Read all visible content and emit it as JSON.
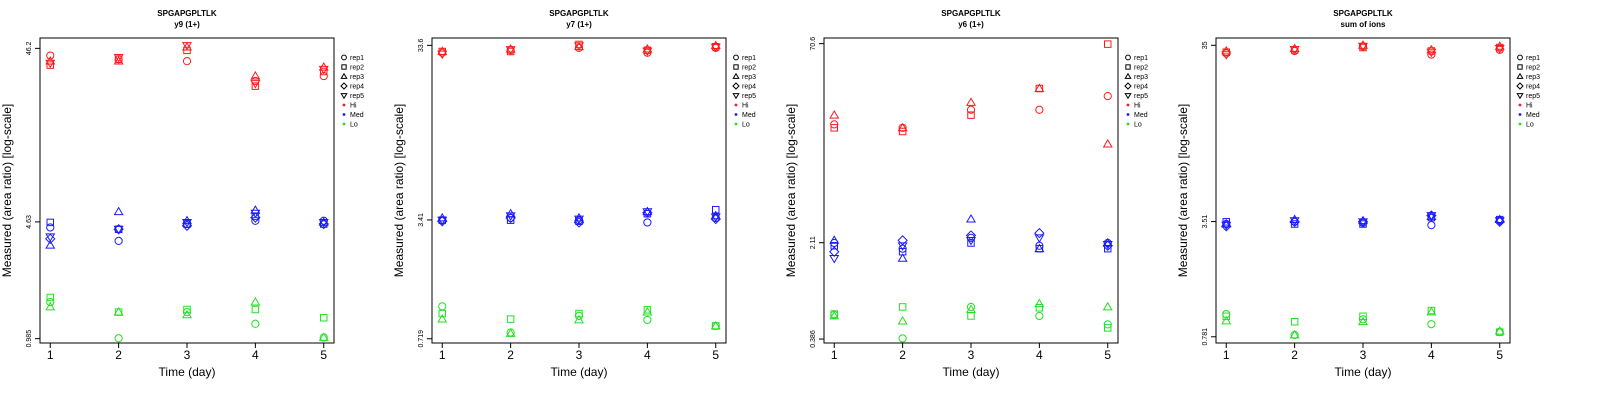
{
  "chart_data": [
    {
      "type": "scatter",
      "title": "SPGAPGPLTLK",
      "subtitle": "y9 (1+)",
      "xlabel": "Time (day)",
      "ylabel": "Measured (area ratio) [log-scale]",
      "log_y": true,
      "ylim": [
        0.93,
        53
      ],
      "yticks": [
        0.985,
        4.63,
        46.2
      ],
      "ytick_labels": [
        "0.985",
        "4.63",
        "46.2"
      ],
      "x": [
        1,
        2,
        3,
        4,
        5
      ],
      "xlim": [
        0.85,
        5.15
      ],
      "legend": [
        "rep1",
        "rep2",
        "rep3",
        "rep4",
        "rep5",
        "Hi",
        "Med",
        "Lo"
      ],
      "legend_position": "right",
      "series": [
        {
          "level": "Hi",
          "rep": "rep1",
          "values": [
            42,
            40,
            39,
            30,
            32
          ]
        },
        {
          "level": "Hi",
          "rep": "rep2",
          "values": [
            37,
            40,
            45,
            28,
            34
          ]
        },
        {
          "level": "Hi",
          "rep": "rep3",
          "values": [
            39,
            39,
            47,
            32,
            36
          ]
        },
        {
          "level": "Hi",
          "rep": "rep5",
          "values": [
            38,
            41,
            48,
            29,
            35
          ]
        },
        {
          "level": "Med",
          "rep": "rep1",
          "values": [
            4.3,
            3.6,
            4.5,
            4.7,
            4.7
          ]
        },
        {
          "level": "Med",
          "rep": "rep2",
          "values": [
            4.6,
            4.2,
            4.5,
            5.0,
            4.5
          ]
        },
        {
          "level": "Med",
          "rep": "rep3",
          "values": [
            3.4,
            5.3,
            4.7,
            5.4,
            4.6
          ]
        },
        {
          "level": "Med",
          "rep": "rep4",
          "values": [
            3.7,
            4.2,
            4.4,
            4.9,
            4.5
          ]
        },
        {
          "level": "Med",
          "rep": "rep5",
          "values": [
            3.8,
            4.2,
            4.6,
            5.2,
            4.6
          ]
        },
        {
          "level": "Lo",
          "rep": "rep1",
          "values": [
            1.6,
            0.99,
            1.4,
            1.2,
            1.0
          ]
        },
        {
          "level": "Lo",
          "rep": "rep2",
          "values": [
            1.7,
            1.4,
            1.45,
            1.45,
            1.3
          ]
        },
        {
          "level": "Lo",
          "rep": "rep3",
          "values": [
            1.5,
            1.4,
            1.35,
            1.6,
            1.0
          ]
        }
      ]
    },
    {
      "type": "scatter",
      "title": "SPGAPGPLTLK",
      "subtitle": "y7 (1+)",
      "xlabel": "Time (day)",
      "ylabel": "Measured (area ratio) [log-scale]",
      "log_y": true,
      "ylim": [
        0.68,
        37
      ],
      "yticks": [
        0.719,
        3.41,
        33.6
      ],
      "ytick_labels": [
        "0.719",
        "3.41",
        "33.6"
      ],
      "x": [
        1,
        2,
        3,
        4,
        5
      ],
      "xlim": [
        0.85,
        5.15
      ],
      "legend": [
        "rep1",
        "rep2",
        "rep3",
        "rep4",
        "rep5",
        "Hi",
        "Med",
        "Lo"
      ],
      "legend_position": "right",
      "series": [
        {
          "level": "Hi",
          "rep": "rep1",
          "values": [
            30.5,
            31.5,
            32.5,
            30.5,
            32.5
          ]
        },
        {
          "level": "Hi",
          "rep": "rep2",
          "values": [
            31.0,
            31.0,
            34.0,
            31.5,
            33.0
          ]
        },
        {
          "level": "Hi",
          "rep": "rep3",
          "values": [
            31.0,
            32.0,
            33.0,
            32.0,
            33.5
          ]
        },
        {
          "level": "Hi",
          "rep": "rep5",
          "values": [
            30.0,
            31.8,
            33.4,
            31.2,
            32.8
          ]
        },
        {
          "level": "Med",
          "rep": "rep1",
          "values": [
            3.4,
            3.5,
            3.4,
            3.3,
            3.5
          ]
        },
        {
          "level": "Med",
          "rep": "rep2",
          "values": [
            3.4,
            3.4,
            3.35,
            3.7,
            3.9
          ]
        },
        {
          "level": "Med",
          "rep": "rep3",
          "values": [
            3.5,
            3.7,
            3.5,
            3.8,
            3.6
          ]
        },
        {
          "level": "Med",
          "rep": "rep4",
          "values": [
            3.35,
            3.5,
            3.3,
            3.75,
            3.45
          ]
        },
        {
          "level": "Med",
          "rep": "rep5",
          "values": [
            3.4,
            3.6,
            3.45,
            3.8,
            3.55
          ]
        },
        {
          "level": "Lo",
          "rep": "rep1",
          "values": [
            1.1,
            0.78,
            0.97,
            0.92,
            0.85
          ]
        },
        {
          "level": "Lo",
          "rep": "rep2",
          "values": [
            1.0,
            0.93,
            1.0,
            1.05,
            0.85
          ]
        },
        {
          "level": "Lo",
          "rep": "rep3",
          "values": [
            0.93,
            0.77,
            0.92,
            1.02,
            0.85
          ]
        }
      ]
    },
    {
      "type": "scatter",
      "title": "SPGAPGPLTLK",
      "subtitle": "y6 (1+)",
      "xlabel": "Time (day)",
      "ylabel": "Measured (area ratio) [log-scale]",
      "log_y": true,
      "ylim": [
        0.36,
        78
      ],
      "yticks": [
        0.386,
        2.11,
        70.6
      ],
      "ytick_labels": [
        "0.386",
        "2.11",
        "70.6"
      ],
      "x": [
        1,
        2,
        3,
        4,
        5
      ],
      "xlim": [
        0.85,
        5.15
      ],
      "legend": [
        "rep1",
        "rep2",
        "rep3",
        "rep4",
        "rep5",
        "Hi",
        "Med",
        "Lo"
      ],
      "legend_position": "right",
      "series": [
        {
          "level": "Hi",
          "rep": "rep1",
          "values": [
            17,
            16,
            22,
            22,
            28
          ]
        },
        {
          "level": "Hi",
          "rep": "rep2",
          "values": [
            16,
            15,
            20,
            32,
            70
          ]
        },
        {
          "level": "Hi",
          "rep": "rep3",
          "values": [
            20,
            16,
            25,
            32,
            12
          ]
        },
        {
          "level": "Med",
          "rep": "rep1",
          "values": [
            2.1,
            1.9,
            2.3,
            2.0,
            2.1
          ]
        },
        {
          "level": "Med",
          "rep": "rep2",
          "values": [
            2.0,
            1.8,
            2.1,
            1.9,
            1.9
          ]
        },
        {
          "level": "Med",
          "rep": "rep3",
          "values": [
            2.2,
            1.6,
            3.2,
            1.9,
            2.1
          ]
        },
        {
          "level": "Med",
          "rep": "rep4",
          "values": [
            1.8,
            2.2,
            2.4,
            2.5,
            2.0
          ]
        },
        {
          "level": "Med",
          "rep": "rep5",
          "values": [
            1.6,
            2.0,
            2.2,
            2.3,
            2.05
          ]
        },
        {
          "level": "Lo",
          "rep": "rep1",
          "values": [
            0.59,
            0.39,
            0.68,
            0.58,
            0.5
          ]
        },
        {
          "level": "Lo",
          "rep": "rep2",
          "values": [
            0.6,
            0.68,
            0.58,
            0.67,
            0.47
          ]
        },
        {
          "level": "Lo",
          "rep": "rep3",
          "values": [
            0.58,
            0.53,
            0.65,
            0.72,
            0.68
          ]
        }
      ]
    },
    {
      "type": "scatter",
      "title": "SPGAPGPLTLK",
      "subtitle": "sum of ions",
      "xlabel": "Time (day)",
      "ylabel": "Measured (area ratio) [log-scale]",
      "log_y": true,
      "ylim": [
        0.72,
        38.5
      ],
      "yticks": [
        0.781,
        3.51,
        35
      ],
      "ytick_labels": [
        "0.781",
        "3.51",
        "35"
      ],
      "x": [
        1,
        2,
        3,
        4,
        5
      ],
      "xlim": [
        0.85,
        5.15
      ],
      "legend": [
        "rep1",
        "rep2",
        "rep3",
        "rep4",
        "rep5",
        "Hi",
        "Med",
        "Lo"
      ],
      "legend_position": "right",
      "series": [
        {
          "level": "Hi",
          "rep": "rep1",
          "values": [
            31.5,
            32.5,
            34.5,
            31.0,
            33.0
          ]
        },
        {
          "level": "Hi",
          "rep": "rep2",
          "values": [
            32.0,
            33.0,
            34.0,
            32.5,
            34.0
          ]
        },
        {
          "level": "Hi",
          "rep": "rep3",
          "values": [
            32.5,
            33.5,
            35.0,
            33.0,
            34.5
          ]
        },
        {
          "level": "Hi",
          "rep": "rep5",
          "values": [
            31.0,
            33.2,
            34.6,
            32.0,
            33.6
          ]
        },
        {
          "level": "Med",
          "rep": "rep1",
          "values": [
            3.4,
            3.5,
            3.45,
            3.35,
            3.55
          ]
        },
        {
          "level": "Med",
          "rep": "rep2",
          "values": [
            3.5,
            3.4,
            3.4,
            3.7,
            3.6
          ]
        },
        {
          "level": "Med",
          "rep": "rep3",
          "values": [
            3.4,
            3.6,
            3.55,
            3.75,
            3.6
          ]
        },
        {
          "level": "Med",
          "rep": "rep4",
          "values": [
            3.3,
            3.5,
            3.5,
            3.8,
            3.5
          ]
        },
        {
          "level": "Med",
          "rep": "rep5",
          "values": [
            3.35,
            3.55,
            3.5,
            3.8,
            3.55
          ]
        },
        {
          "level": "Lo",
          "rep": "rep1",
          "values": [
            1.05,
            0.8,
            0.98,
            0.92,
            0.83
          ]
        },
        {
          "level": "Lo",
          "rep": "rep2",
          "values": [
            1.02,
            0.95,
            1.02,
            1.1,
            0.83
          ]
        },
        {
          "level": "Lo",
          "rep": "rep3",
          "values": [
            0.96,
            0.8,
            0.95,
            1.08,
            0.84
          ]
        }
      ]
    }
  ],
  "colors": {
    "Hi": "#ff1a1a",
    "Med": "#1a1aff",
    "Lo": "#22e022"
  },
  "markers": {
    "rep1": "circle",
    "rep2": "square",
    "rep3": "triangle",
    "rep4": "diamond",
    "rep5": "inverted-triangle"
  }
}
